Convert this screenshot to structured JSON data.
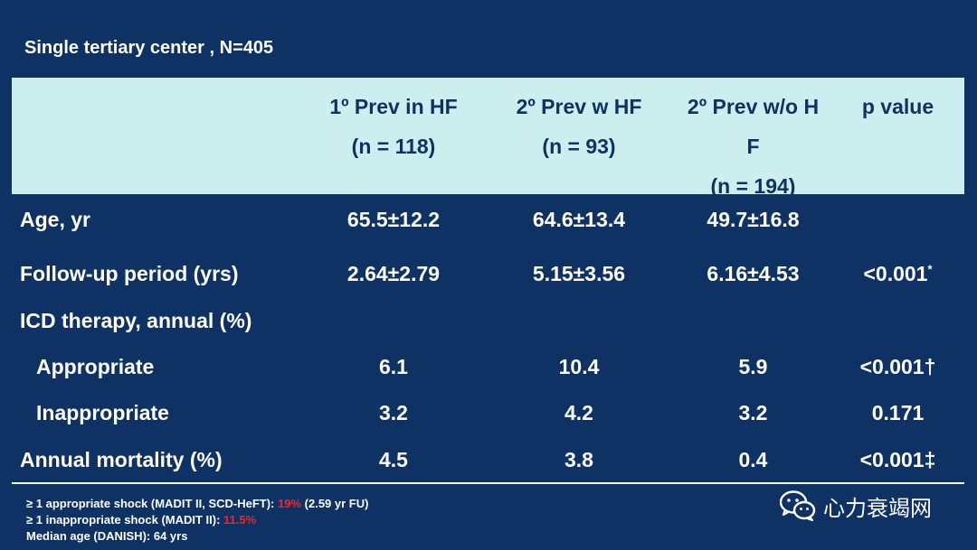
{
  "subtitle": "Single tertiary center , N=405",
  "header": {
    "col1": [
      "1º Prev in HF",
      "(n = 118)"
    ],
    "col2": [
      "2º Prev w HF",
      "(n = 93)"
    ],
    "col3": [
      "2º Prev w/o H",
      "F",
      "(n = 194)"
    ],
    "col4": [
      "p value"
    ]
  },
  "rows": [
    {
      "label": "Age, yr",
      "v1": "65.5±12.2",
      "v2": "64.6±13.4",
      "v3": "49.7±16.8",
      "v4": "",
      "v4sup": ""
    },
    {
      "label": "Follow-up period (yrs)",
      "v1": "2.64±2.79",
      "v2": "5.15±3.56",
      "v3": "6.16±4.53",
      "v4": "<0.001",
      "v4sup": "*"
    },
    {
      "label": "ICD therapy, annual (%)",
      "v1": "",
      "v2": "",
      "v3": "",
      "v4": "",
      "v4sup": ""
    },
    {
      "label": "Appropriate",
      "v1": "6.1",
      "v2": "10.4",
      "v3": "5.9",
      "v4": "<0.001†",
      "v4sup": ""
    },
    {
      "label": "Inappropriate",
      "v1": "3.2",
      "v2": "4.2",
      "v3": "3.2",
      "v4": "0.171",
      "v4sup": ""
    },
    {
      "label": "Annual mortality (%)",
      "v1": "4.5",
      "v2": "3.8",
      "v3": "0.4",
      "v4": "<0.001‡",
      "v4sup": ""
    }
  ],
  "notes": {
    "line1_a": "≥ 1 appropriate shock (MADIT II, SCD-HeFT): ",
    "line1_red": "19%",
    "line1_b": " (2.59 yr FU)",
    "line2_a": "≥ 1 inappropriate shock (MADIT II): ",
    "line2_red": "11.5%",
    "line3": "Median age (DANISH): 64 yrs"
  },
  "watermark": {
    "icon": "wechat-icon",
    "text": "心力衰竭网"
  }
}
